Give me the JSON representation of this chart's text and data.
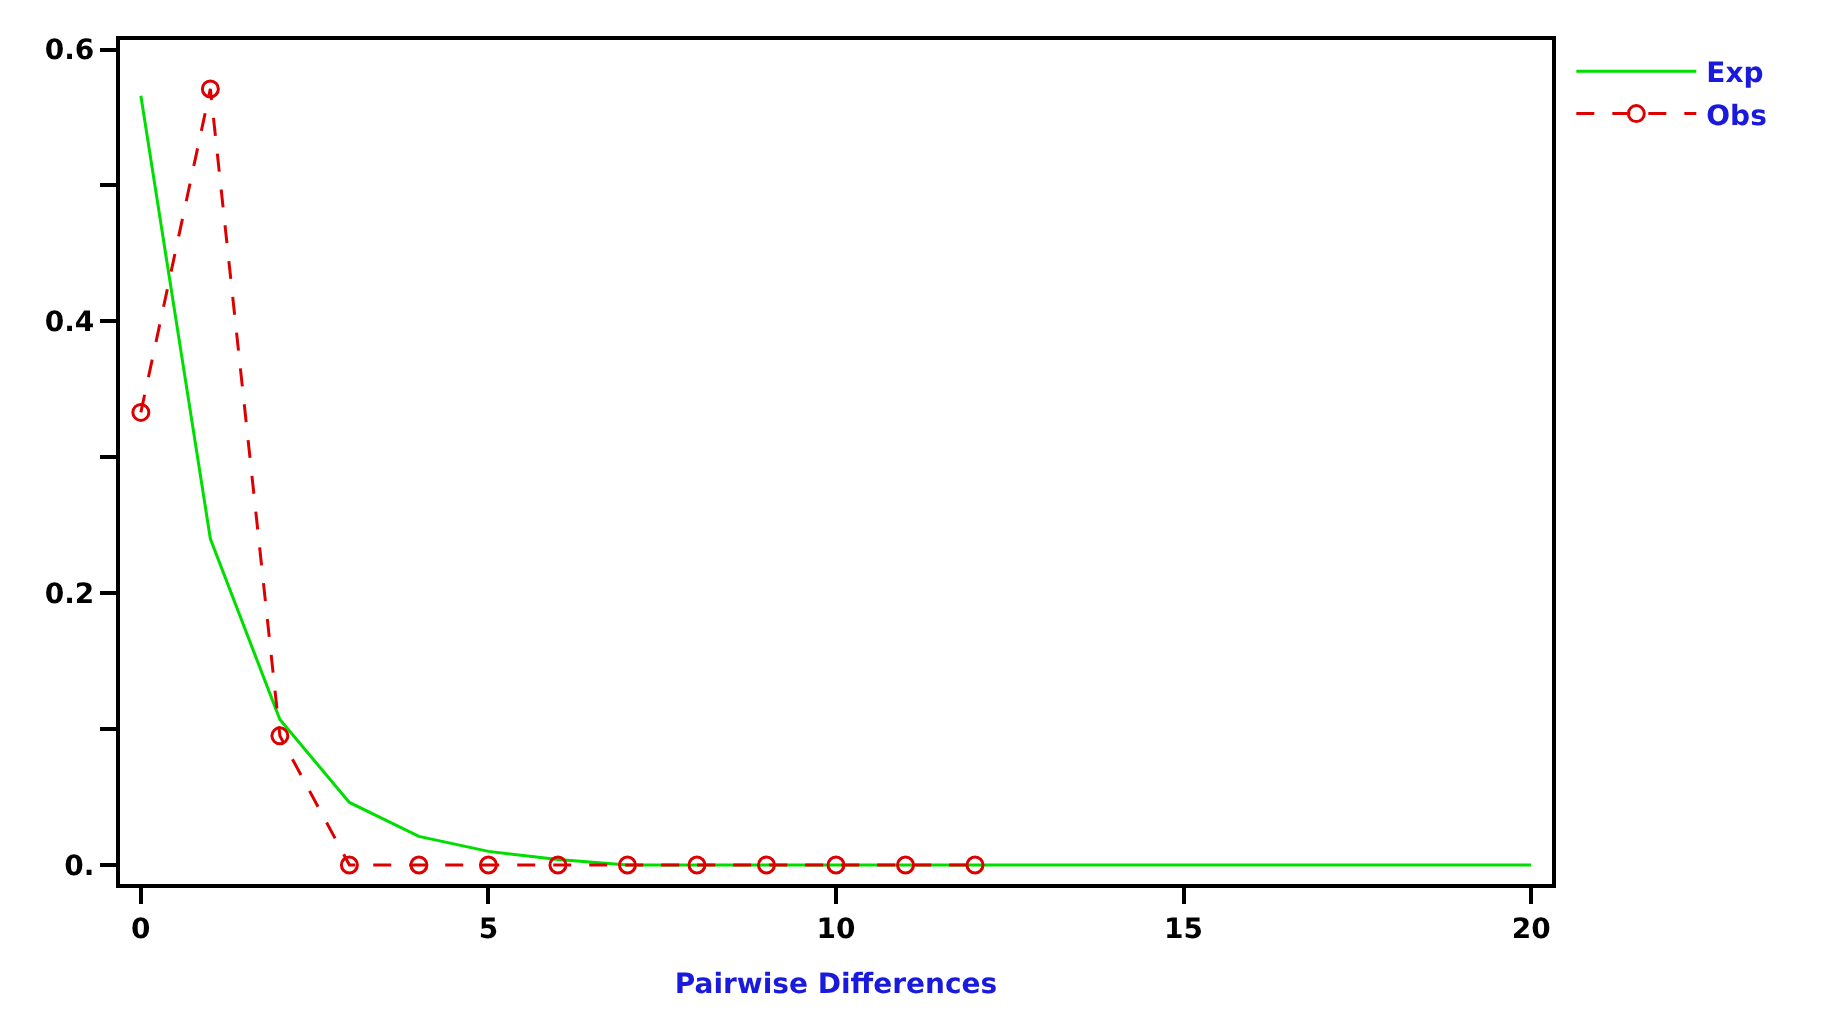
{
  "chart_data": {
    "type": "line",
    "xlabel": "Pairwise Differences",
    "xlim": [
      -0.3,
      20.3
    ],
    "xticks": [
      0,
      5,
      10,
      15,
      20
    ],
    "ylim": [
      -0.014,
      0.607
    ],
    "yticks": [
      {
        "value": 0,
        "label": "0."
      },
      {
        "value": 0.1,
        "label": null
      },
      0.2,
      {
        "value": 0.3,
        "label": null
      },
      0.4,
      {
        "value": 0.5,
        "label": null
      },
      0.6
    ],
    "legend": "top right",
    "series": [
      {
        "name": "Exp",
        "color": "#00dd00",
        "marker": "none",
        "line_style": "solid",
        "x": [
          0,
          1,
          2,
          3,
          4,
          5,
          6,
          7,
          8,
          9,
          10,
          11,
          12,
          13,
          14,
          15,
          16,
          17,
          18,
          19,
          20
        ],
        "values": [
          0.566,
          0.24,
          0.107,
          0.046,
          0.021,
          0.01,
          0.004,
          0,
          0,
          0,
          0,
          0,
          0,
          0,
          0,
          0,
          0,
          0,
          0,
          0,
          0
        ]
      },
      {
        "name": "Obs",
        "color": "#dd0000",
        "marker": "circle",
        "line_style": "dashed",
        "x": [
          0,
          1,
          2,
          3,
          4,
          5,
          6,
          7,
          8,
          9,
          10,
          11,
          12
        ],
        "values": [
          0.333,
          0.571,
          0.095,
          0,
          0,
          0,
          0,
          0,
          0,
          0,
          0,
          0,
          0
        ]
      }
    ]
  }
}
